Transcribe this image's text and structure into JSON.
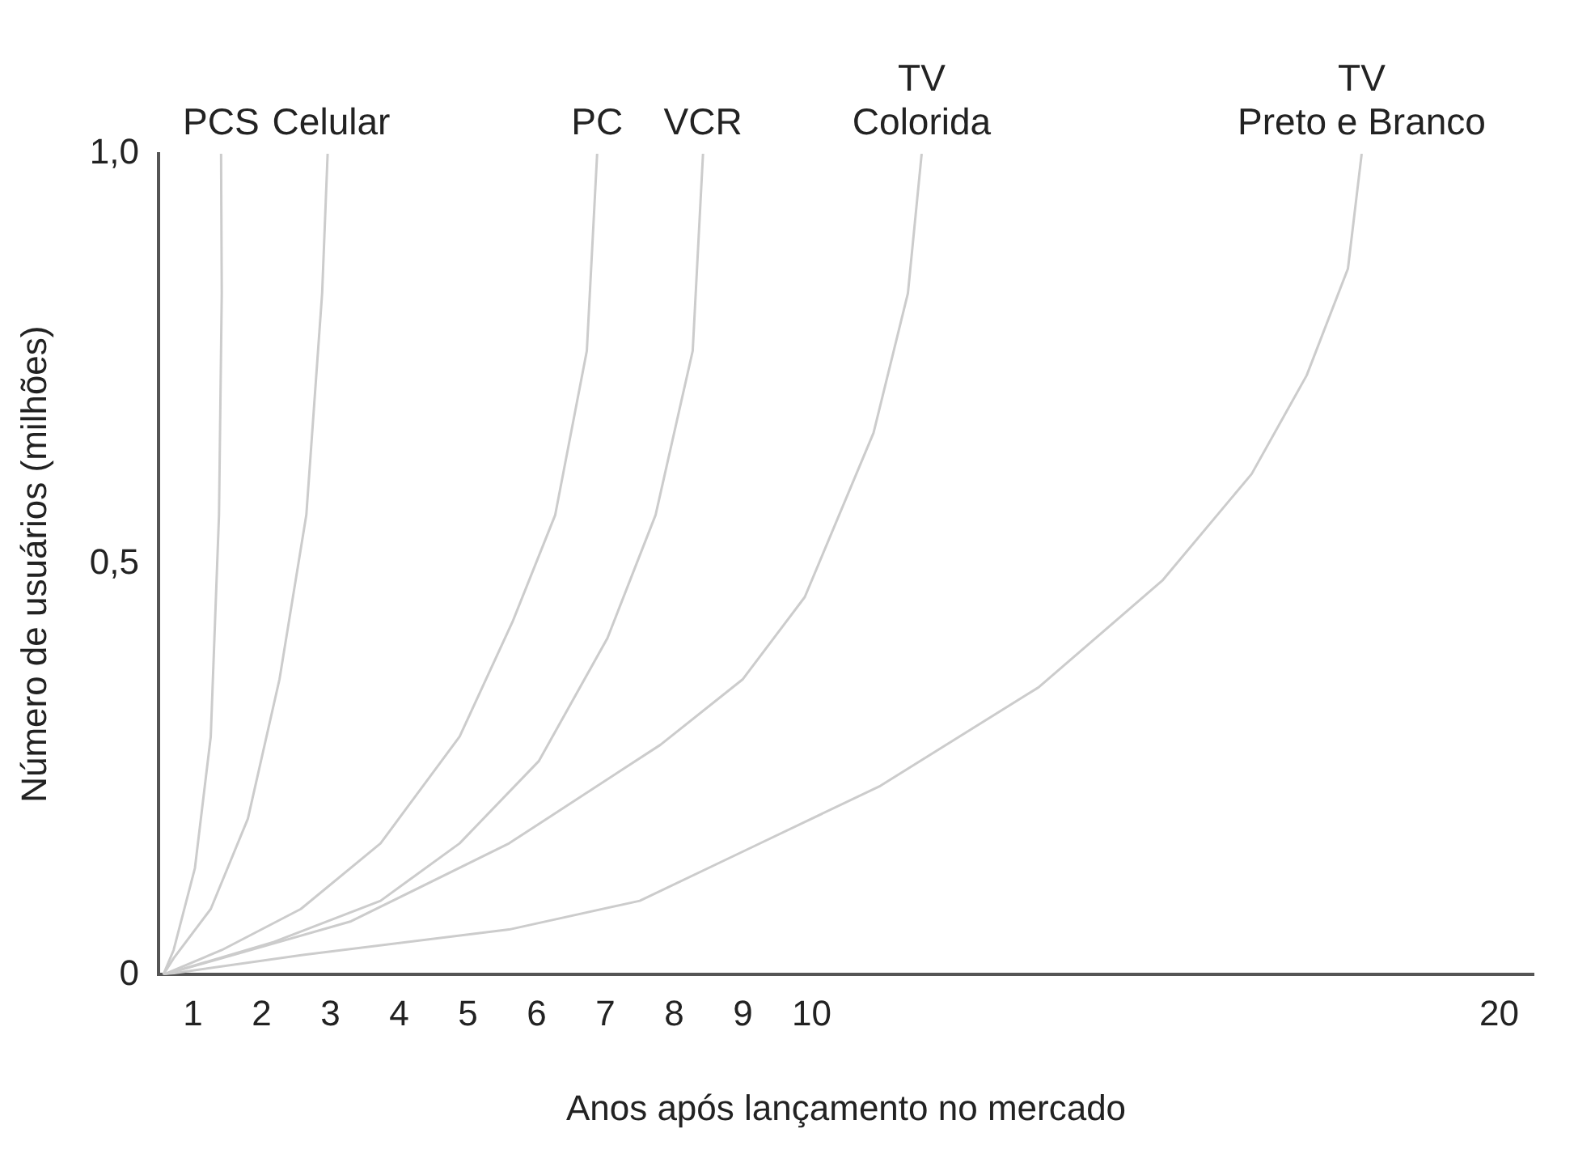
{
  "chart_data": {
    "type": "line",
    "xlabel": "Anos após lançamento no mercado",
    "ylabel": "Número de usuários (milhões)",
    "xlim": [
      0.5,
      20.5
    ],
    "xticks": [
      1,
      2,
      3,
      4,
      5,
      6,
      7,
      8,
      9,
      10,
      20
    ],
    "ylim": [
      0,
      1.0
    ],
    "yticks": [
      {
        "value": 0,
        "label": "0"
      },
      {
        "value": 0.5,
        "label": "0,5"
      },
      {
        "value": 1.0,
        "label": "1,0"
      }
    ],
    "marker": "none",
    "legend": false,
    "series": [
      {
        "name": "PCS",
        "color": "#cccccc",
        "x": [
          0.57,
          0.72,
          1.03,
          1.26,
          1.38,
          1.42,
          1.41
        ],
        "values": [
          0,
          0.03,
          0.13,
          0.29,
          0.56,
          0.83,
          1.0
        ]
      },
      {
        "name": "Celular",
        "color": "#cccccc",
        "x": [
          0.57,
          0.72,
          1.26,
          1.8,
          2.26,
          2.65,
          2.88,
          2.96
        ],
        "values": [
          0,
          0.02,
          0.08,
          0.19,
          0.36,
          0.56,
          0.83,
          1.0
        ]
      },
      {
        "name": "PC",
        "color": "#cccccc",
        "x": [
          0.57,
          1.42,
          2.57,
          3.73,
          4.88,
          5.65,
          6.27,
          6.73,
          6.88
        ],
        "values": [
          0,
          0.03,
          0.08,
          0.16,
          0.29,
          0.43,
          0.56,
          0.76,
          1.0
        ]
      },
      {
        "name": "VCR",
        "color": "#cccccc",
        "x": [
          0.57,
          2.18,
          3.73,
          4.88,
          6.03,
          7.03,
          7.73,
          8.27,
          8.42
        ],
        "values": [
          0,
          0.04,
          0.09,
          0.16,
          0.26,
          0.41,
          0.56,
          0.76,
          1.0
        ]
      },
      {
        "name": "TV\nColorida",
        "color": "#cccccc",
        "x": [
          0.57,
          1.42,
          3.3,
          5.6,
          7.8,
          9.0,
          9.9,
          10.9,
          11.4,
          11.6
        ],
        "values": [
          0,
          0.02,
          0.065,
          0.16,
          0.28,
          0.36,
          0.46,
          0.66,
          0.83,
          1.0
        ]
      },
      {
        "name": "TV\nPreto e Branco",
        "color": "#cccccc",
        "x": [
          0.57,
          2.6,
          5.6,
          7.5,
          9.0,
          11.0,
          13.3,
          15.1,
          16.4,
          17.2,
          17.8,
          18.0
        ],
        "values": [
          0,
          0.024,
          0.055,
          0.09,
          0.15,
          0.23,
          0.35,
          0.48,
          0.61,
          0.73,
          0.86,
          1.0
        ]
      }
    ]
  }
}
